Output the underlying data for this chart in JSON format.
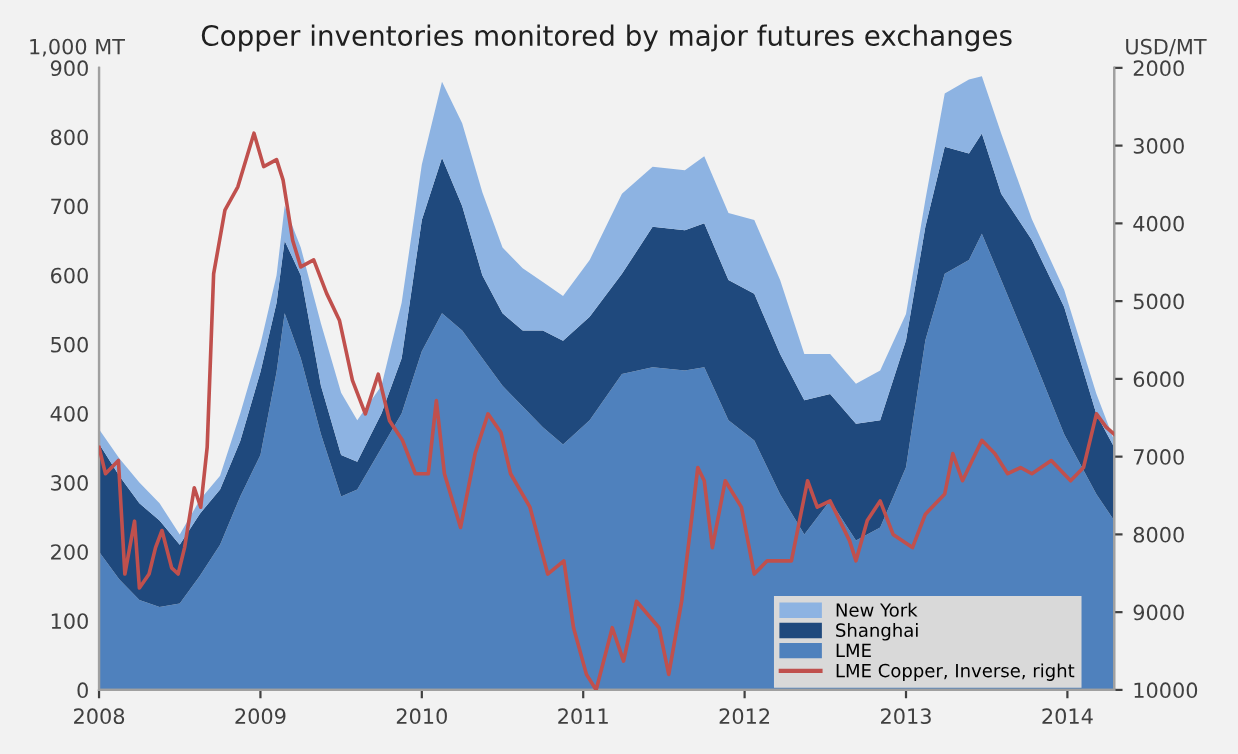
{
  "chart_data": {
    "type": "area",
    "title": "Copper inventories monitored by major futures exchanges",
    "ylabel": "1,000 MT",
    "y2label": "USD/MT",
    "stacked": true,
    "legend": "bottom right",
    "grid": false,
    "x": [
      2008.0,
      2008.125,
      2008.25,
      2008.375,
      2008.5,
      2008.625,
      2008.75,
      2008.875,
      2009.0,
      2009.1,
      2009.15,
      2009.25,
      2009.375,
      2009.5,
      2009.6,
      2009.75,
      2009.875,
      2010.0,
      2010.125,
      2010.25,
      2010.375,
      2010.5,
      2010.625,
      2010.75,
      2010.875,
      2011.04,
      2011.24,
      2011.43,
      2011.63,
      2011.75,
      2011.9,
      2012.06,
      2012.22,
      2012.37,
      2012.53,
      2012.69,
      2012.84,
      2013.0,
      2013.12,
      2013.24,
      2013.39,
      2013.47,
      2013.59,
      2013.78,
      2013.98,
      2014.18,
      2014.29
    ],
    "series": [
      {
        "name": "LME",
        "color": "#4f81bd",
        "values": [
          200,
          160,
          130,
          120,
          125,
          165,
          210,
          280,
          340,
          460,
          545,
          480,
          370,
          280,
          290,
          350,
          400,
          490,
          545,
          520,
          480,
          440,
          410,
          380,
          355,
          390,
          457,
          467,
          462,
          467,
          390,
          361,
          283,
          225,
          274,
          216,
          235,
          322,
          506,
          602,
          622,
          660,
          593,
          486,
          370,
          283,
          245
        ]
      },
      {
        "name": "Shanghai",
        "color": "#1f497d",
        "values": [
          156,
          150,
          140,
          125,
          85,
          90,
          80,
          80,
          120,
          100,
          105,
          120,
          70,
          60,
          40,
          50,
          80,
          190,
          225,
          180,
          120,
          105,
          110,
          140,
          150,
          150,
          145,
          203,
          203,
          208,
          203,
          212,
          203,
          194,
          154,
          169,
          155,
          184,
          164,
          184,
          154,
          145,
          125,
          165,
          184,
          116,
          106
        ]
      },
      {
        "name": "New York",
        "color": "#8db3e2",
        "values": [
          21,
          25,
          30,
          25,
          15,
          20,
          20,
          40,
          40,
          40,
          50,
          40,
          90,
          90,
          60,
          40,
          80,
          80,
          110,
          120,
          120,
          95,
          90,
          70,
          65,
          82,
          116,
          87,
          87,
          97,
          97,
          107,
          107,
          67,
          58,
          58,
          72,
          38,
          39,
          77,
          107,
          83,
          87,
          30,
          25,
          29,
          10
        ]
      },
      {
        "name": "LME Copper, Inverse, right",
        "type": "line",
        "axis": "y2",
        "color": "#c0504d",
        "x": [
          2008.0,
          2008.04,
          2008.12,
          2008.16,
          2008.22,
          2008.25,
          2008.31,
          2008.35,
          2008.39,
          2008.45,
          2008.49,
          2008.53,
          2008.59,
          2008.63,
          2008.67,
          2008.71,
          2008.78,
          2008.86,
          2008.96,
          2009.02,
          2009.1,
          2009.14,
          2009.2,
          2009.25,
          2009.33,
          2009.41,
          2009.49,
          2009.57,
          2009.65,
          2009.73,
          2009.8,
          2009.88,
          2009.96,
          2010.04,
          2010.09,
          2010.14,
          2010.24,
          2010.33,
          2010.41,
          2010.49,
          2010.55,
          2010.67,
          2010.78,
          2010.88,
          2010.94,
          2011.02,
          2011.08,
          2011.18,
          2011.25,
          2011.33,
          2011.47,
          2011.53,
          2011.61,
          2011.71,
          2011.75,
          2011.8,
          2011.88,
          2011.98,
          2012.06,
          2012.14,
          2012.29,
          2012.39,
          2012.45,
          2012.53,
          2012.65,
          2012.69,
          2012.76,
          2012.84,
          2012.92,
          2013.04,
          2013.12,
          2013.24,
          2013.29,
          2013.35,
          2013.47,
          2013.55,
          2013.63,
          2013.71,
          2013.78,
          2013.9,
          2014.02,
          2014.1,
          2014.18,
          2014.24,
          2014.29
        ],
        "values": [
          6880,
          7220,
          7050,
          8510,
          7830,
          8690,
          8510,
          8170,
          7950,
          8430,
          8510,
          8170,
          7400,
          7650,
          6880,
          4650,
          3830,
          3530,
          2840,
          3270,
          3180,
          3440,
          4220,
          4560,
          4470,
          4900,
          5250,
          6020,
          6450,
          5940,
          6540,
          6790,
          7220,
          7220,
          6280,
          7220,
          7910,
          6960,
          6450,
          6690,
          7220,
          7650,
          8510,
          8340,
          9200,
          9800,
          10000,
          9200,
          9630,
          8860,
          9200,
          9800,
          8860,
          7140,
          7310,
          8170,
          7310,
          7650,
          8510,
          8340,
          8340,
          7310,
          7650,
          7570,
          8080,
          8340,
          7820,
          7570,
          8000,
          8170,
          7740,
          7480,
          6960,
          7310,
          6790,
          6960,
          7220,
          7140,
          7220,
          7050,
          7310,
          7140,
          6450,
          6620,
          6710
        ]
      }
    ],
    "xlim": [
      2008,
      2014.29
    ],
    "xticks": [
      2008,
      2009,
      2010,
      2011,
      2012,
      2013,
      2014
    ],
    "ylim": [
      0,
      900
    ],
    "yticks": [
      0,
      100,
      200,
      300,
      400,
      500,
      600,
      700,
      800,
      900
    ],
    "y2lim": [
      10000,
      2000
    ],
    "y2ticks": [
      2000,
      3000,
      4000,
      5000,
      6000,
      7000,
      8000,
      9000,
      10000
    ]
  }
}
